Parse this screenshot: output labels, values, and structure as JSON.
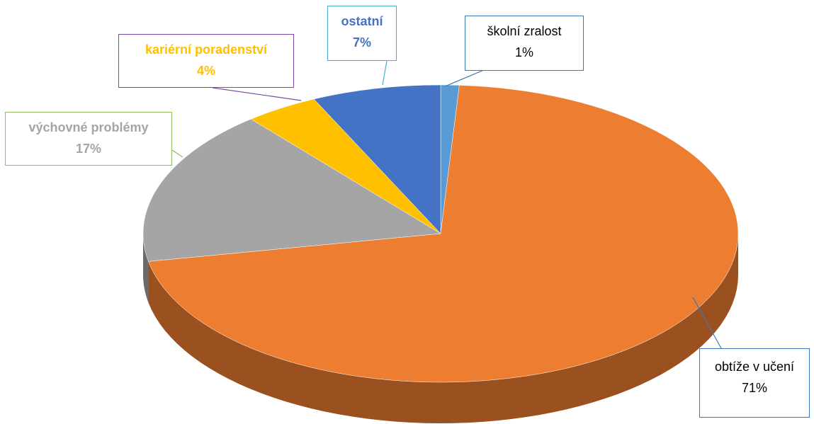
{
  "chart_data": {
    "type": "pie",
    "categories": [
      "školní zralost",
      "obtíže v učení",
      "výchovné problémy",
      "kariérní poradenství",
      "ostatní"
    ],
    "values": [
      1,
      71,
      17,
      4,
      7
    ],
    "value_labels": [
      "1%",
      "71%",
      "17%",
      "4%",
      "7%"
    ],
    "colors": [
      "#5b9bd5",
      "#ed7d31",
      "#a5a5a5",
      "#ffc000",
      "#4472c4"
    ]
  }
}
